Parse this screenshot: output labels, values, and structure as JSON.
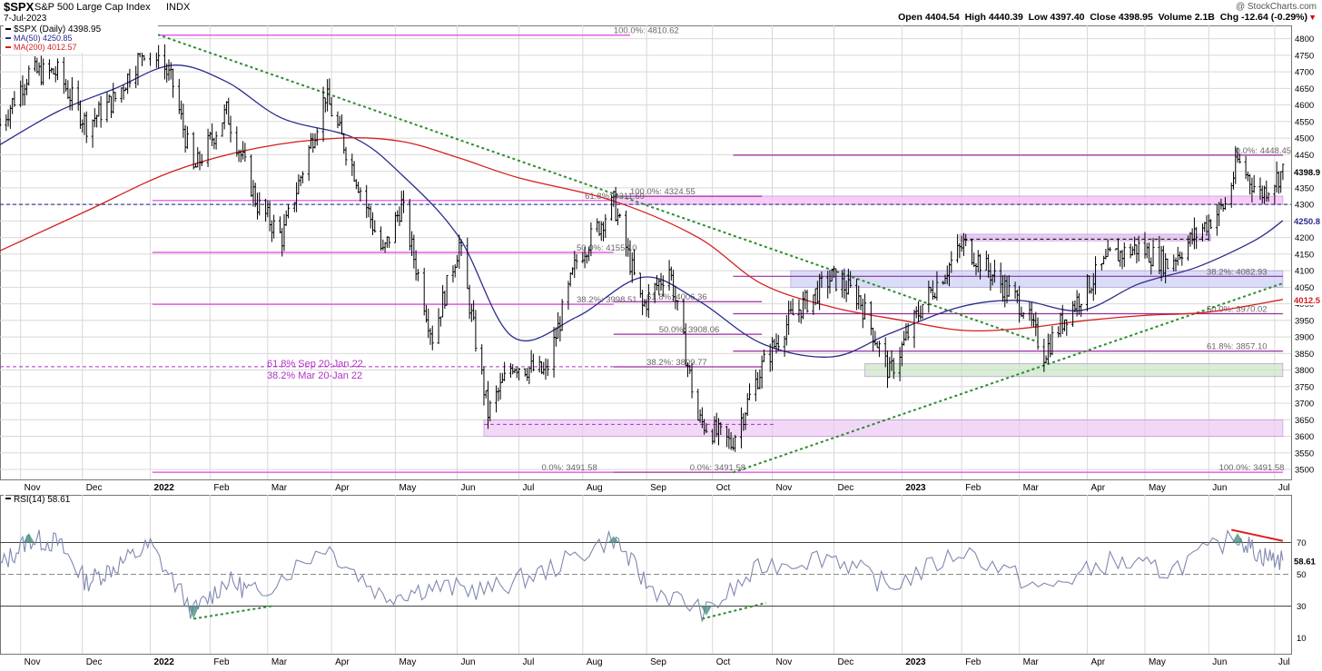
{
  "header": {
    "symbol": "$SPX",
    "name": "S&P 500 Large Cap Index",
    "exchange": "INDX",
    "date": "7-Jul-2023",
    "ohlc": "Open 4404.54  High 4440.39  Low 4397.40  Close 4398.95  Volume 2.1B  Chg -12.64 (-0.29%)",
    "arrow": "▼",
    "watermark": "@ StockCharts.com"
  },
  "colors": {
    "price": "#000000",
    "ma50": "#2b2b8f",
    "ma200": "#d42020",
    "fib": "#e040e0",
    "fibDark": "#9c2aa0",
    "trendline": "#2e8b2e",
    "rsi": "#8088b0",
    "grid": "#d8d8d8",
    "navy": "#1a1a8c",
    "annot": "#b030c8"
  },
  "chart_data": [
    {
      "type": "line",
      "title": "$SPX (Daily) 4398.95",
      "legend": [
        {
          "label": "$SPX (Daily) 4398.95",
          "color": "#000000"
        },
        {
          "label": "MA(50) 4250.85",
          "color": "#2b2b8f"
        },
        {
          "label": "MA(200) 4012.57",
          "color": "#d42020"
        }
      ],
      "ylim": [
        3470,
        4840
      ],
      "yticks": [
        3500,
        3550,
        3600,
        3650,
        3700,
        3750,
        3800,
        3850,
        3900,
        3950,
        4000,
        4050,
        4100,
        4150,
        4200,
        4250,
        4300,
        4350,
        4400,
        4450,
        4500,
        4550,
        4600,
        4650,
        4700,
        4750,
        4800
      ],
      "xlabels": [
        "Nov",
        "Dec",
        "2022",
        "Feb",
        "Mar",
        "Apr",
        "May",
        "Jun",
        "Jul",
        "Aug",
        "Sep",
        "Oct",
        "Nov",
        "Dec",
        "2023",
        "Feb",
        "Mar",
        "Apr",
        "May",
        "Jun",
        "Jul"
      ],
      "last_price_label": "4398.9",
      "ma50_label": "4250.8",
      "ma200_label": "4012.5",
      "series": [
        {
          "name": "$SPX (Daily) 4398.95",
          "x": [
            "2021-10-22",
            "2021-11-05",
            "2021-11-19",
            "2021-12-03",
            "2021-12-17",
            "2022-01-03",
            "2022-01-14",
            "2022-01-24",
            "2022-02-09",
            "2022-02-24",
            "2022-03-08",
            "2022-03-29",
            "2022-04-12",
            "2022-04-26",
            "2022-05-05",
            "2022-05-20",
            "2022-06-02",
            "2022-06-16",
            "2022-06-28",
            "2022-07-14",
            "2022-07-29",
            "2022-08-16",
            "2022-08-30",
            "2022-09-12",
            "2022-09-26",
            "2022-10-12",
            "2022-10-27",
            "2022-11-10",
            "2022-11-30",
            "2022-12-13",
            "2022-12-28",
            "2023-01-13",
            "2023-02-02",
            "2023-02-17",
            "2023-03-03",
            "2023-03-13",
            "2023-03-24",
            "2023-04-14",
            "2023-04-28",
            "2023-05-12",
            "2023-05-26",
            "2023-06-09",
            "2023-06-15",
            "2023-06-26",
            "2023-07-07"
          ],
          "close": [
            4540,
            4697,
            4697,
            4540,
            4620,
            4800,
            4660,
            4400,
            4580,
            4300,
            4200,
            4630,
            4400,
            4150,
            4300,
            3900,
            4180,
            3670,
            3820,
            3790,
            4130,
            4305,
            3990,
            4110,
            3650,
            3577,
            3810,
            3960,
            4080,
            4020,
            3790,
            3999,
            4180,
            4080,
            3990,
            3850,
            3970,
            4140,
            4170,
            4120,
            4210,
            4300,
            4430,
            4330,
            4399
          ]
        },
        {
          "name": "MA(50) 4250.85",
          "x": [
            "2021-10-22",
            "2021-11-19",
            "2021-12-17",
            "2022-01-14",
            "2022-02-09",
            "2022-03-08",
            "2022-04-12",
            "2022-05-05",
            "2022-06-02",
            "2022-06-28",
            "2022-07-29",
            "2022-08-30",
            "2022-09-26",
            "2022-10-27",
            "2022-11-30",
            "2022-12-28",
            "2023-01-31",
            "2023-03-01",
            "2023-03-31",
            "2023-04-28",
            "2023-05-26",
            "2023-06-23",
            "2023-07-07"
          ],
          "values": [
            4480,
            4580,
            4650,
            4720,
            4670,
            4560,
            4500,
            4390,
            4200,
            3900,
            3960,
            4080,
            4010,
            3880,
            3840,
            3910,
            3990,
            4010,
            3980,
            4060,
            4110,
            4190,
            4251
          ]
        },
        {
          "name": "MA(200) 4012.57",
          "x": [
            "2021-10-22",
            "2021-12-03",
            "2022-01-14",
            "2022-02-24",
            "2022-04-05",
            "2022-05-05",
            "2022-06-02",
            "2022-07-01",
            "2022-08-16",
            "2022-09-26",
            "2022-10-27",
            "2022-11-30",
            "2023-01-03",
            "2023-02-01",
            "2023-03-01",
            "2023-04-03",
            "2023-05-01",
            "2023-06-01",
            "2023-07-07"
          ],
          "values": [
            4160,
            4280,
            4400,
            4470,
            4500,
            4490,
            4440,
            4380,
            4310,
            4200,
            4060,
            3990,
            3950,
            3920,
            3925,
            3950,
            3965,
            3975,
            4013
          ]
        }
      ],
      "annotations": {
        "fib_lines": [
          {
            "label": "100.0%: 4810.62",
            "value": 4810.62
          },
          {
            "label": "61.8%: 4311.69",
            "value": 4311.69
          },
          {
            "label": "50.0%: 4155.10",
            "value": 4155.1
          },
          {
            "label": "38.2%: 3998.51",
            "value": 3998.51
          },
          {
            "label": "100.0%: 4324.55",
            "value": 4324.55
          },
          {
            "label": "61.8%: 4006.36",
            "value": 4006.36
          },
          {
            "label": "50.0%: 3908.06",
            "value": 3908.06
          },
          {
            "label": "38.2%: 3809.77",
            "value": 3809.77
          },
          {
            "label": "0.0%: 3491.58",
            "value": 3491.58
          },
          {
            "label": "0.0%: 3491.58",
            "value": 3491.58
          },
          {
            "label": "0.0%: 4448.45",
            "value": 4448.45
          },
          {
            "label": "38.2%: 4082.93",
            "value": 4082.93
          },
          {
            "label": "50.0%: 3970.02",
            "value": 3970.02
          },
          {
            "label": "61.8%: 3857.10",
            "value": 3857.1
          },
          {
            "label": "100.0%: 3491.58",
            "value": 3491.58
          }
        ],
        "text_notes": [
          "61.8% Sep 20-Jan 22",
          "38.2% Mar 20-Jan 22"
        ]
      }
    },
    {
      "type": "line",
      "title": "RSI(14) 58.61",
      "ylim": [
        0,
        100
      ],
      "yticks": [
        10,
        30,
        50,
        70
      ],
      "xlabels": [
        "Nov",
        "Dec",
        "2022",
        "Feb",
        "Mar",
        "Apr",
        "May",
        "Jun",
        "Jul",
        "Aug",
        "Sep",
        "Oct",
        "Nov",
        "Dec",
        "2023",
        "Feb",
        "Mar",
        "Apr",
        "May",
        "Jun",
        "Jul"
      ],
      "last_label": "58.61",
      "series": [
        {
          "name": "RSI(14) 58.61",
          "x": [
            "2021-10-22",
            "2021-11-05",
            "2021-11-19",
            "2021-12-03",
            "2021-12-17",
            "2022-01-03",
            "2022-01-24",
            "2022-02-09",
            "2022-02-24",
            "2022-03-29",
            "2022-04-26",
            "2022-05-20",
            "2022-06-16",
            "2022-07-14",
            "2022-08-16",
            "2022-09-02",
            "2022-09-30",
            "2022-10-27",
            "2022-11-30",
            "2022-12-28",
            "2023-02-02",
            "2023-03-13",
            "2023-04-14",
            "2023-05-12",
            "2023-06-15",
            "2023-06-26",
            "2023-07-07"
          ],
          "values": [
            55,
            72,
            70,
            45,
            55,
            68,
            26,
            46,
            38,
            68,
            36,
            42,
            40,
            52,
            73,
            42,
            26,
            55,
            62,
            42,
            65,
            40,
            58,
            52,
            74,
            62,
            58.61
          ]
        }
      ]
    }
  ]
}
